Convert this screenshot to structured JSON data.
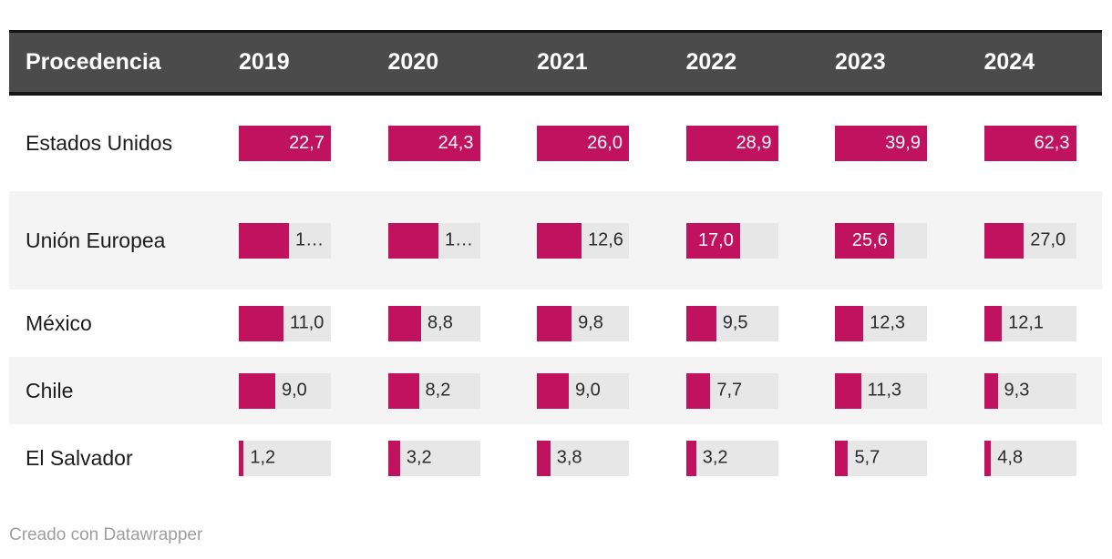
{
  "colors": {
    "bar": "#c0125f",
    "track": "#e7e7e7",
    "header_bg": "#4b4b4b",
    "header_border": "#161616",
    "zebra_row_bg": "#f4f4f4",
    "row_label_text": "#1c1c1c",
    "value_inside_text": "#ffffff",
    "value_outside_text": "#2b2b2b",
    "footer_text": "#9e9e9e"
  },
  "table": {
    "header": {
      "origin_label": "Procedencia",
      "years": [
        "2019",
        "2020",
        "2021",
        "2022",
        "2023",
        "2024"
      ]
    },
    "rows": [
      {
        "label": "Estados Unidos",
        "cells": [
          {
            "display": "22,7",
            "fraction": 1,
            "inside": true
          },
          {
            "display": "24,3",
            "fraction": 1,
            "inside": true
          },
          {
            "display": "26,0",
            "fraction": 1,
            "inside": true
          },
          {
            "display": "28,9",
            "fraction": 1,
            "inside": true
          },
          {
            "display": "39,9",
            "fraction": 1,
            "inside": true
          },
          {
            "display": "62,3",
            "fraction": 1,
            "inside": true
          }
        ]
      },
      {
        "label": "Unión Europea",
        "cells": [
          {
            "display": "1…",
            "fraction": 0.545,
            "inside": false
          },
          {
            "display": "1…",
            "fraction": 0.55,
            "inside": false
          },
          {
            "display": "12,6",
            "fraction": 0.485,
            "inside": false
          },
          {
            "display": "17,0",
            "fraction": 0.588,
            "inside": true
          },
          {
            "display": "25,6",
            "fraction": 0.642,
            "inside": true
          },
          {
            "display": "27,0",
            "fraction": 0.433,
            "inside": false
          }
        ]
      },
      {
        "label": "México",
        "cells": [
          {
            "display": "11,0",
            "fraction": 0.485,
            "inside": false
          },
          {
            "display": "8,8",
            "fraction": 0.362,
            "inside": false
          },
          {
            "display": "9,8",
            "fraction": 0.377,
            "inside": false
          },
          {
            "display": "9,5",
            "fraction": 0.329,
            "inside": false
          },
          {
            "display": "12,3",
            "fraction": 0.308,
            "inside": false
          },
          {
            "display": "12,1",
            "fraction": 0.194,
            "inside": false
          }
        ]
      },
      {
        "label": "Chile",
        "cells": [
          {
            "display": "9,0",
            "fraction": 0.396,
            "inside": false
          },
          {
            "display": "8,2",
            "fraction": 0.337,
            "inside": false
          },
          {
            "display": "9,0",
            "fraction": 0.346,
            "inside": false
          },
          {
            "display": "7,7",
            "fraction": 0.266,
            "inside": false
          },
          {
            "display": "11,3",
            "fraction": 0.283,
            "inside": false
          },
          {
            "display": "9,3",
            "fraction": 0.149,
            "inside": false
          }
        ]
      },
      {
        "label": "El Salvador",
        "cells": [
          {
            "display": "1,2",
            "fraction": 0.053,
            "inside": false
          },
          {
            "display": "3,2",
            "fraction": 0.132,
            "inside": false
          },
          {
            "display": "3,8",
            "fraction": 0.146,
            "inside": false
          },
          {
            "display": "3,2",
            "fraction": 0.111,
            "inside": false
          },
          {
            "display": "5,7",
            "fraction": 0.143,
            "inside": false
          },
          {
            "display": "4,8",
            "fraction": 0.077,
            "inside": false
          }
        ]
      }
    ]
  },
  "footer": {
    "credit": "Creado con Datawrapper"
  },
  "chart_data": {
    "type": "table",
    "title": "",
    "row_header": "Procedencia",
    "categories": [
      "2019",
      "2020",
      "2021",
      "2022",
      "2023",
      "2024"
    ],
    "series": [
      {
        "name": "Estados Unidos",
        "values": [
          22.7,
          24.3,
          26.0,
          28.9,
          39.9,
          62.3
        ],
        "display": [
          "22,7",
          "24,3",
          "26,0",
          "28,9",
          "39,9",
          "62,3"
        ]
      },
      {
        "name": "Unión Europea",
        "values": [
          null,
          null,
          12.6,
          17.0,
          25.6,
          27.0
        ],
        "display": [
          "1…",
          "1…",
          "12,6",
          "17,0",
          "25,6",
          "27,0"
        ]
      },
      {
        "name": "México",
        "values": [
          11.0,
          8.8,
          9.8,
          9.5,
          12.3,
          12.1
        ],
        "display": [
          "11,0",
          "8,8",
          "9,8",
          "9,5",
          "12,3",
          "12,1"
        ]
      },
      {
        "name": "Chile",
        "values": [
          9.0,
          8.2,
          9.0,
          7.7,
          11.3,
          9.3
        ],
        "display": [
          "9,0",
          "8,2",
          "9,0",
          "7,7",
          "11,3",
          "9,3"
        ]
      },
      {
        "name": "El Salvador",
        "values": [
          1.2,
          3.2,
          3.8,
          3.2,
          5.7,
          4.8
        ],
        "display": [
          "1,2",
          "3,2",
          "3,8",
          "3,2",
          "5,7",
          "4,8"
        ]
      }
    ],
    "layout_hints": {
      "bars_scaled_per_column_to_column_max": true,
      "bar_color": "#c0125f",
      "track_color": "#e7e7e7",
      "grid": false,
      "legend": "none"
    }
  }
}
